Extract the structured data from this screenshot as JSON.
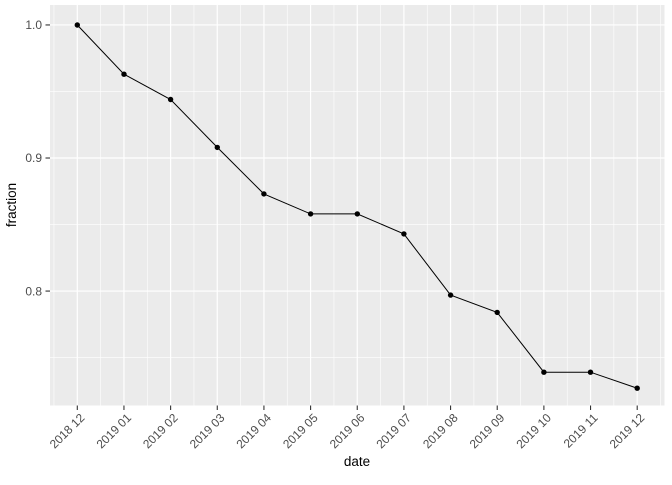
{
  "chart_data": {
    "type": "line",
    "title": "",
    "xlabel": "date",
    "ylabel": "fraction",
    "categories": [
      "2018 12",
      "2019 01",
      "2019 02",
      "2019 03",
      "2019 04",
      "2019 05",
      "2019 06",
      "2019 07",
      "2019 08",
      "2019 09",
      "2019 10",
      "2019 11",
      "2019 12"
    ],
    "values": [
      1.0,
      0.963,
      0.944,
      0.908,
      0.873,
      0.858,
      0.858,
      0.843,
      0.797,
      0.784,
      0.739,
      0.739,
      0.727
    ],
    "y_ticks": [
      0.8,
      0.9,
      1.0
    ],
    "y_tick_labels": [
      "0.8",
      "0.9",
      "1.0"
    ],
    "y_minor_ticks": [
      0.75,
      0.85,
      0.95
    ],
    "ylim": [
      0.714,
      1.015
    ],
    "grid": true,
    "legend": false,
    "marker": "point",
    "colors": {
      "background": "#FFFFFF",
      "panel_background": "#EBEBEB",
      "grid": "#FFFFFF",
      "line": "#000000",
      "point": "#000000",
      "tick_mark": "#333333",
      "tick_label": "#4D4D4D",
      "axis_title": "#000000"
    }
  }
}
